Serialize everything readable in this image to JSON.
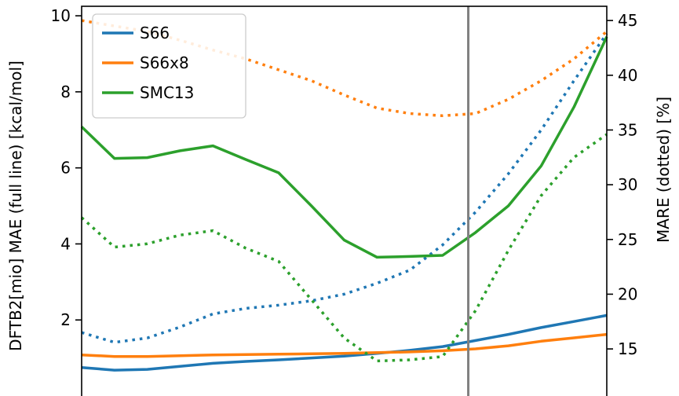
{
  "chart_data": {
    "type": "line",
    "x": [
      0,
      1,
      2,
      3,
      4,
      5,
      6,
      7,
      8,
      9,
      10,
      11,
      12,
      13,
      14,
      15,
      16
    ],
    "ylabel_left": "DFTB2[mio] MAE (full line) [kcal/mol]",
    "ylabel_right": "MARE (dotted) [%]",
    "ylim_left": [
      0,
      10.25
    ],
    "ylim_right": [
      10.7,
      46.3
    ],
    "yticks_left": [
      2,
      4,
      6,
      8,
      10
    ],
    "yticks_right": [
      15,
      20,
      25,
      30,
      35,
      40,
      45
    ],
    "vertical_line_x": 11.78,
    "legend_position": "top-left",
    "grid": false,
    "series": [
      {
        "name": "S66",
        "color": "#1f77b4",
        "mae": [
          0.75,
          0.68,
          0.7,
          0.78,
          0.86,
          0.91,
          0.95,
          1.0,
          1.05,
          1.12,
          1.2,
          1.3,
          1.46,
          1.62,
          1.8,
          1.96,
          2.12
        ],
        "mare": [
          16.5,
          15.6,
          16.0,
          17.0,
          18.2,
          18.7,
          19.0,
          19.4,
          20.0,
          21.0,
          22.2,
          24.5,
          27.5,
          31.0,
          35.0,
          39.5,
          43.8
        ]
      },
      {
        "name": "S66x8",
        "color": "#ff7f0e",
        "mae": [
          1.08,
          1.04,
          1.04,
          1.06,
          1.08,
          1.09,
          1.1,
          1.11,
          1.12,
          1.14,
          1.16,
          1.19,
          1.24,
          1.32,
          1.44,
          1.53,
          1.62
        ],
        "mare": [
          45.0,
          44.5,
          44.0,
          43.2,
          42.3,
          41.5,
          40.5,
          39.5,
          38.2,
          37.0,
          36.5,
          36.3,
          36.5,
          37.8,
          39.5,
          41.5,
          44.0
        ]
      },
      {
        "name": "SMC13",
        "color": "#2ca02c",
        "mae": [
          7.08,
          6.25,
          6.27,
          6.45,
          6.58,
          6.22,
          5.87,
          5.0,
          4.1,
          3.65,
          3.67,
          3.7,
          4.3,
          5.0,
          6.05,
          7.6,
          9.45
        ],
        "mare": [
          27.0,
          24.3,
          24.6,
          25.4,
          25.8,
          24.2,
          23.0,
          19.5,
          16.0,
          13.9,
          14.0,
          14.3,
          18.5,
          24.0,
          29.0,
          32.5,
          34.6
        ]
      }
    ]
  }
}
